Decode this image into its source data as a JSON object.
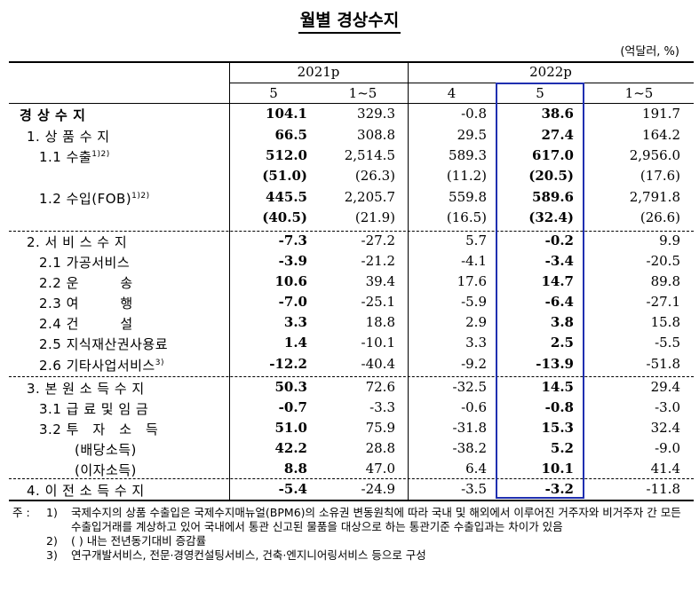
{
  "title": "월별 경상수지",
  "unit": "(억달러, %)",
  "header": {
    "groups": [
      "2021p",
      "2022p"
    ],
    "cols": [
      "5",
      "1~5",
      "4",
      "5",
      "1~5"
    ]
  },
  "rows": [
    {
      "label": "경 상 수 지",
      "sup": "",
      "vals": [
        "104.1",
        "329.3",
        "-0.8",
        "38.6",
        "191.7"
      ]
    },
    {
      "label": "1. 상 품 수 지",
      "sup": "",
      "vals": [
        "66.5",
        "308.8",
        "29.5",
        "27.4",
        "164.2"
      ]
    },
    {
      "label": "1.1 수출",
      "sup": "1)2)",
      "vals": [
        "512.0",
        "2,514.5",
        "589.3",
        "617.0",
        "2,956.0"
      ]
    },
    {
      "label": "",
      "sup": "",
      "vals": [
        "(51.0)",
        "(26.3)",
        "(11.2)",
        "(20.5)",
        "(17.6)"
      ]
    },
    {
      "label": "1.2 수입(FOB)",
      "sup": "1)2)",
      "vals": [
        "445.5",
        "2,205.7",
        "559.8",
        "589.6",
        "2,791.8"
      ]
    },
    {
      "label": "",
      "sup": "",
      "vals": [
        "(40.5)",
        "(21.9)",
        "(16.5)",
        "(32.4)",
        "(26.6)"
      ]
    },
    {
      "label": "2. 서 비 스 수 지",
      "sup": "",
      "vals": [
        "-7.3",
        "-27.2",
        "5.7",
        "-0.2",
        "9.9"
      ]
    },
    {
      "label": "2.1 가공서비스",
      "sup": "",
      "vals": [
        "-3.9",
        "-21.2",
        "-4.1",
        "-3.4",
        "-20.5"
      ]
    },
    {
      "label": "2.2 운　　　송",
      "sup": "",
      "vals": [
        "10.6",
        "39.4",
        "17.6",
        "14.7",
        "89.8"
      ]
    },
    {
      "label": "2.3 여　　　행",
      "sup": "",
      "vals": [
        "-7.0",
        "-25.1",
        "-5.9",
        "-6.4",
        "-27.1"
      ]
    },
    {
      "label": "2.4 건　　　설",
      "sup": "",
      "vals": [
        "3.3",
        "18.8",
        "2.9",
        "3.8",
        "15.8"
      ]
    },
    {
      "label": "2.5 지식재산권사용료",
      "sup": "",
      "vals": [
        "1.4",
        "-10.1",
        "3.3",
        "2.5",
        "-5.5"
      ]
    },
    {
      "label": "2.6 기타사업서비스",
      "sup": "3)",
      "vals": [
        "-12.2",
        "-40.4",
        "-9.2",
        "-13.9",
        "-51.8"
      ]
    },
    {
      "label": "3. 본 원 소 득 수 지",
      "sup": "",
      "vals": [
        "50.3",
        "72.6",
        "-32.5",
        "14.5",
        "29.4"
      ]
    },
    {
      "label": "3.1 급 료 및 임 금",
      "sup": "",
      "vals": [
        "-0.7",
        "-3.3",
        "-0.6",
        "-0.8",
        "-3.0"
      ]
    },
    {
      "label": "3.2 투　자　소　득",
      "sup": "",
      "vals": [
        "51.0",
        "75.9",
        "-31.8",
        "15.3",
        "32.4"
      ]
    },
    {
      "label": "(배당소득)",
      "sup": "",
      "vals": [
        "42.2",
        "28.8",
        "-38.2",
        "5.2",
        "-9.0"
      ]
    },
    {
      "label": "(이자소득)",
      "sup": "",
      "vals": [
        "8.8",
        "47.0",
        "6.4",
        "10.1",
        "41.4"
      ]
    },
    {
      "label": "4. 이 전 소 득 수 지",
      "sup": "",
      "vals": [
        "-5.4",
        "-24.9",
        "-3.5",
        "-3.2",
        "-11.8"
      ]
    }
  ],
  "notes": [
    {
      "lead": "주 :",
      "num": "1)",
      "text": "국제수지의 상품 수출입은 국제수지매뉴얼(BPM6)의 소유권 변동원칙에 따라 국내 및 해외에서 이루어진 거주자와 비거주자 간 모든 수출입거래를 계상하고 있어 국내에서 통관 신고된 물품을 대상으로 하는 통관기준 수출입과는 차이가 있음"
    },
    {
      "lead": "",
      "num": "2)",
      "text": "(   ) 내는 전년동기대비 증감률"
    },
    {
      "lead": "",
      "num": "3)",
      "text": "연구개발서비스, 전문·경영컨설팅서비스, 건축·엔지니어링서비스 등으로 구성"
    }
  ]
}
